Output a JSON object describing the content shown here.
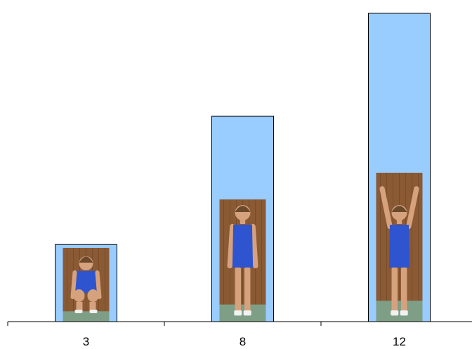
{
  "chart_data": {
    "type": "bar",
    "title": "",
    "xlabel": "",
    "ylabel": "",
    "categories": [
      "3",
      "8",
      "12"
    ],
    "values": [
      3,
      8,
      12
    ],
    "ylim": [
      0,
      12.3
    ],
    "grid": false,
    "legend": "none",
    "colors": {
      "bar_fill": "#99ccff",
      "bar_stroke": "#000000",
      "axis": "#000000",
      "wall": "#8a5a34",
      "floor": "#7f9e86",
      "skin": "#d6a27e",
      "hair": "#6b4a2b",
      "suit": "#2f54cf"
    },
    "bar_images": [
      "crouching-boy-photo",
      "standing-boy-photo",
      "arms-raised-boy-photo"
    ]
  }
}
